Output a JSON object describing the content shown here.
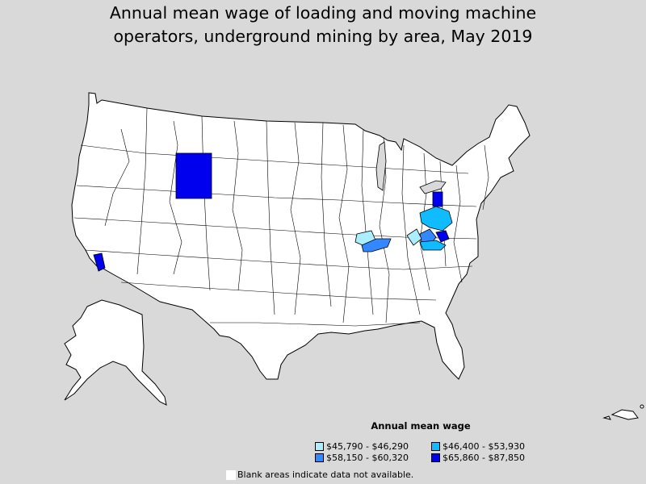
{
  "title_lines": [
    "Annual mean wage of loading and moving machine",
    "operators, underground mining by area, May 2019"
  ],
  "legend": {
    "title": "Annual mean wage",
    "items": [
      {
        "label": "$45,790 - $46,290",
        "color": "#aaeeff"
      },
      {
        "label": "$46,400 - $53,930",
        "color": "#11bbff"
      },
      {
        "label": "$58,150 - $60,320",
        "color": "#3388ff"
      },
      {
        "label": "$65,860 - $87,850",
        "color": "#0000ee"
      }
    ]
  },
  "note": "Blank areas indicate data not available.",
  "colors": {
    "background": "#d9d9d9",
    "land": "#ffffff",
    "border": "#000000"
  }
}
